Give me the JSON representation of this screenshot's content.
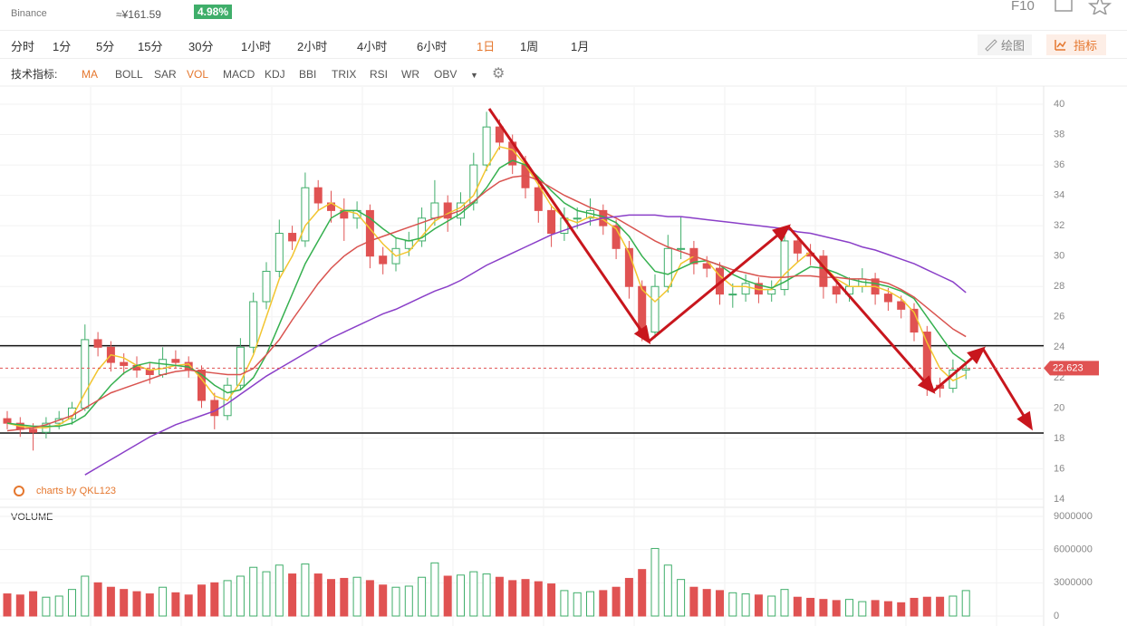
{
  "header": {
    "exchange": "Binance",
    "cny_price": "≈¥161.59",
    "change": "4.98%",
    "f10": "F10"
  },
  "toolbar": {
    "intervals": [
      "分时",
      "1分",
      "5分",
      "15分",
      "30分",
      "1小时",
      "2小时",
      "4小时",
      "6小时",
      "1日",
      "1周",
      "1月"
    ],
    "active_interval": 9,
    "draw_button": "绘图",
    "indicator_button": "指标"
  },
  "indicators": {
    "label": "技术指标:",
    "items": [
      "MA",
      "BOLL",
      "SAR",
      "VOL",
      "MACD",
      "KDJ",
      "BBI",
      "TRIX",
      "RSI",
      "WR",
      "OBV"
    ],
    "active": [
      0,
      3
    ]
  },
  "chart_data": {
    "type": "candlestick",
    "watermark": "charts by QKL123",
    "volume_label": "VOLUME",
    "up_color": "#3fae6a",
    "down_color": "#e05252",
    "ylim": [
      14,
      40
    ],
    "yticks": [
      14,
      16,
      18,
      20,
      22,
      24,
      26,
      28,
      30,
      32,
      34,
      36,
      38,
      40
    ],
    "current_price": 22.623,
    "support_lines": [
      24.1,
      18.35
    ],
    "candles": [
      [
        19.3,
        19.8,
        18.6,
        19
      ],
      [
        19,
        19.4,
        18.1,
        18.6
      ],
      [
        18.6,
        19,
        17.2,
        18.4
      ],
      [
        18.4,
        19.4,
        18,
        19
      ],
      [
        19,
        19.8,
        18.6,
        19.3
      ],
      [
        19.3,
        20.4,
        18.9,
        20
      ],
      [
        20,
        25.5,
        19.8,
        24.5
      ],
      [
        24.5,
        25,
        23.4,
        24
      ],
      [
        24,
        24.4,
        22.4,
        23
      ],
      [
        23,
        23.6,
        22.2,
        22.8
      ],
      [
        22.8,
        23.4,
        22,
        22.5
      ],
      [
        22.5,
        23,
        21.6,
        22.2
      ],
      [
        22.2,
        24,
        22,
        23.2
      ],
      [
        23.2,
        23.8,
        22.6,
        23
      ],
      [
        23,
        23.4,
        22,
        22.5
      ],
      [
        22.5,
        22.8,
        20,
        20.5
      ],
      [
        20.5,
        21,
        18.6,
        19.5
      ],
      [
        19.5,
        22,
        19.2,
        21.5
      ],
      [
        21.5,
        24.6,
        21.2,
        24
      ],
      [
        24,
        27.6,
        23.6,
        27
      ],
      [
        27,
        29.6,
        26.5,
        29
      ],
      [
        29,
        32.4,
        28.6,
        31.5
      ],
      [
        31.5,
        32,
        30.4,
        31
      ],
      [
        31,
        35.5,
        30.6,
        34.5
      ],
      [
        34.5,
        35,
        33,
        33.5
      ],
      [
        33.5,
        34.3,
        32.2,
        33
      ],
      [
        33,
        33.8,
        31,
        32.5
      ],
      [
        32.5,
        33.6,
        31.8,
        33
      ],
      [
        33,
        33.4,
        29.2,
        30
      ],
      [
        30,
        30.6,
        28.8,
        29.5
      ],
      [
        29.5,
        31.2,
        29,
        30.5
      ],
      [
        30.5,
        31.6,
        30,
        31
      ],
      [
        31,
        33.2,
        30.6,
        32.5
      ],
      [
        32.5,
        35,
        32,
        33.5
      ],
      [
        33.5,
        34,
        31.6,
        32.5
      ],
      [
        32.5,
        34.2,
        32,
        33.5
      ],
      [
        33.5,
        36.8,
        33,
        36
      ],
      [
        36,
        39.5,
        35.6,
        38.5
      ],
      [
        38.5,
        39,
        37,
        37.5
      ],
      [
        37.5,
        38,
        35.4,
        36
      ],
      [
        36,
        36.6,
        33.8,
        34.5
      ],
      [
        34.5,
        35,
        32.2,
        33
      ],
      [
        33,
        33.4,
        30.6,
        31.5
      ],
      [
        31.5,
        33.2,
        31,
        32.5
      ],
      [
        32.5,
        33.2,
        31.8,
        32.5
      ],
      [
        32.5,
        33.8,
        32,
        33
      ],
      [
        33,
        33.4,
        31.4,
        32
      ],
      [
        32,
        32.4,
        29.8,
        30.5
      ],
      [
        30.5,
        31,
        27.2,
        28
      ],
      [
        28,
        28.4,
        24.4,
        25
      ],
      [
        25,
        28.8,
        24.6,
        28
      ],
      [
        28,
        31.4,
        27.6,
        30.5
      ],
      [
        30.5,
        32.6,
        29.8,
        30.5
      ],
      [
        30.5,
        31,
        28.8,
        29.5
      ],
      [
        29.5,
        30,
        28.6,
        29.2
      ],
      [
        29.2,
        29.6,
        26.8,
        27.5
      ],
      [
        27.5,
        28.2,
        26.6,
        27.5
      ],
      [
        27.5,
        28.8,
        27,
        28.2
      ],
      [
        28.2,
        28.6,
        26.9,
        27.5
      ],
      [
        27.5,
        28.4,
        27,
        27.8
      ],
      [
        27.8,
        31.8,
        27.4,
        31
      ],
      [
        31,
        31.4,
        29.6,
        30.2
      ],
      [
        30.2,
        30.8,
        29.4,
        30
      ],
      [
        30,
        30.4,
        27.2,
        28
      ],
      [
        28,
        28.4,
        26.9,
        27.5
      ],
      [
        27.5,
        28.6,
        27,
        28
      ],
      [
        28,
        29.2,
        27.6,
        28.5
      ],
      [
        28.5,
        28.9,
        26.8,
        27.5
      ],
      [
        27.5,
        27.9,
        26.4,
        27
      ],
      [
        27,
        27.4,
        25.9,
        26.5
      ],
      [
        26.5,
        26.9,
        24.4,
        25
      ],
      [
        25,
        25.4,
        20.8,
        21.5
      ],
      [
        21.5,
        22,
        20.7,
        21.3
      ],
      [
        21.3,
        23.2,
        21,
        22.5
      ],
      [
        22.5,
        23,
        21.9,
        22.6
      ]
    ],
    "series": [
      {
        "color": "#f2c530",
        "values": [
          19,
          18.8,
          18.7,
          18.7,
          18.9,
          19.4,
          21,
          22.5,
          23.5,
          23.3,
          22.8,
          22.5,
          22.6,
          22.8,
          22.9,
          21.9,
          20.8,
          20.5,
          21.7,
          23.5,
          26,
          28.5,
          30,
          32,
          33,
          33.5,
          33,
          32.8,
          31.8,
          30.8,
          30,
          30.3,
          31.3,
          32.3,
          32.8,
          33.2,
          34,
          35.8,
          37.2,
          37,
          36,
          34.7,
          33.3,
          32.5,
          32.2,
          32.6,
          32.4,
          31.8,
          30.2,
          27.8,
          27,
          27.8,
          29.5,
          30,
          29.7,
          28.7,
          28,
          28,
          27.8,
          27.8,
          28.8,
          29.6,
          30.3,
          29.4,
          28.5,
          28,
          28,
          28,
          27.7,
          27.2,
          26.3,
          24.3,
          22.6,
          21.8,
          22.2
        ]
      },
      {
        "color": "#35b04f",
        "values": [
          19,
          18.9,
          18.8,
          18.8,
          18.8,
          19,
          19.5,
          20.5,
          21.5,
          22.3,
          22.8,
          23,
          22.9,
          22.8,
          22.7,
          22.2,
          21.5,
          21,
          21.2,
          22,
          23.5,
          25.5,
          27.5,
          29.5,
          31,
          32.5,
          33,
          33,
          32.5,
          31.8,
          31.2,
          31,
          31.2,
          31.8,
          32.3,
          32.8,
          33.5,
          34.5,
          35.8,
          36.3,
          36,
          35.2,
          34.3,
          33.5,
          33,
          32.8,
          32.6,
          32.2,
          31.3,
          30,
          29,
          28.8,
          29.2,
          29.6,
          29.7,
          29.4,
          28.8,
          28.4,
          28.1,
          27.9,
          28.3,
          28.8,
          29.3,
          29.2,
          28.9,
          28.5,
          28.3,
          28.2,
          28,
          27.7,
          27.2,
          26,
          24.8,
          23.6,
          23
        ]
      },
      {
        "color": "#d9534f",
        "values": [
          18.5,
          18.6,
          18.7,
          18.9,
          19.2,
          19.5,
          20,
          20.5,
          21,
          21.3,
          21.6,
          21.9,
          22.2,
          22.4,
          22.5,
          22.4,
          22.3,
          22.2,
          22.2,
          22.6,
          23.5,
          24.5,
          25.8,
          27,
          28.2,
          29.2,
          30,
          30.6,
          31,
          31.3,
          31.6,
          31.9,
          32.2,
          32.5,
          32.7,
          33,
          33.6,
          34.3,
          34.9,
          35.2,
          35.3,
          35,
          34.5,
          34,
          33.6,
          33.2,
          32.9,
          32.5,
          32,
          31.5,
          31,
          30.6,
          30.3,
          30,
          29.7,
          29.4,
          29.1,
          28.9,
          28.7,
          28.6,
          28.6,
          28.7,
          28.7,
          28.6,
          28.6,
          28.5,
          28.5,
          28.4,
          28.2,
          27.8,
          27.3,
          26.6,
          25.9,
          25.2,
          24.7
        ]
      },
      {
        "color": "#8a3fc8",
        "values": [
          null,
          null,
          null,
          null,
          null,
          null,
          15.6,
          16.1,
          16.6,
          17.1,
          17.6,
          18.1,
          18.5,
          18.9,
          19.2,
          19.5,
          19.8,
          20.3,
          20.9,
          21.5,
          22.1,
          22.6,
          23.1,
          23.6,
          24.1,
          24.6,
          25,
          25.4,
          25.8,
          26.2,
          26.5,
          26.9,
          27.3,
          27.7,
          28,
          28.4,
          28.9,
          29.4,
          29.8,
          30.2,
          30.6,
          31,
          31.4,
          31.7,
          32,
          32.3,
          32.5,
          32.6,
          32.7,
          32.7,
          32.7,
          32.6,
          32.6,
          32.5,
          32.4,
          32.3,
          32.2,
          32.1,
          32,
          31.9,
          31.8,
          31.6,
          31.5,
          31.3,
          31.1,
          30.9,
          30.6,
          30.4,
          30.1,
          29.8,
          29.5,
          29.1,
          28.7,
          28.3,
          27.6
        ]
      }
    ],
    "volume": [
      2000000,
      1900000,
      2200000,
      1700000,
      1800000,
      2400000,
      3600000,
      3000000,
      2600000,
      2400000,
      2200000,
      2000000,
      2600000,
      2100000,
      1900000,
      2800000,
      3000000,
      3200000,
      3600000,
      4400000,
      4000000,
      4600000,
      3800000,
      4700000,
      3800000,
      3300000,
      3400000,
      3500000,
      3200000,
      2800000,
      2600000,
      2700000,
      3500000,
      4800000,
      3600000,
      3700000,
      4000000,
      3800000,
      3500000,
      3200000,
      3300000,
      3100000,
      2900000,
      2300000,
      2100000,
      2200000,
      2300000,
      2600000,
      3400000,
      4200000,
      6100000,
      4600000,
      3300000,
      2600000,
      2400000,
      2300000,
      2100000,
      2000000,
      1900000,
      1800000,
      2400000,
      1700000,
      1600000,
      1500000,
      1400000,
      1500000,
      1300000,
      1400000,
      1300000,
      1200000,
      1600000,
      1700000,
      1700000,
      1800000,
      2300000
    ],
    "vol_ylim": [
      0,
      9000000
    ],
    "vol_yticks": [
      0,
      3000000,
      6000000,
      9000000
    ]
  }
}
